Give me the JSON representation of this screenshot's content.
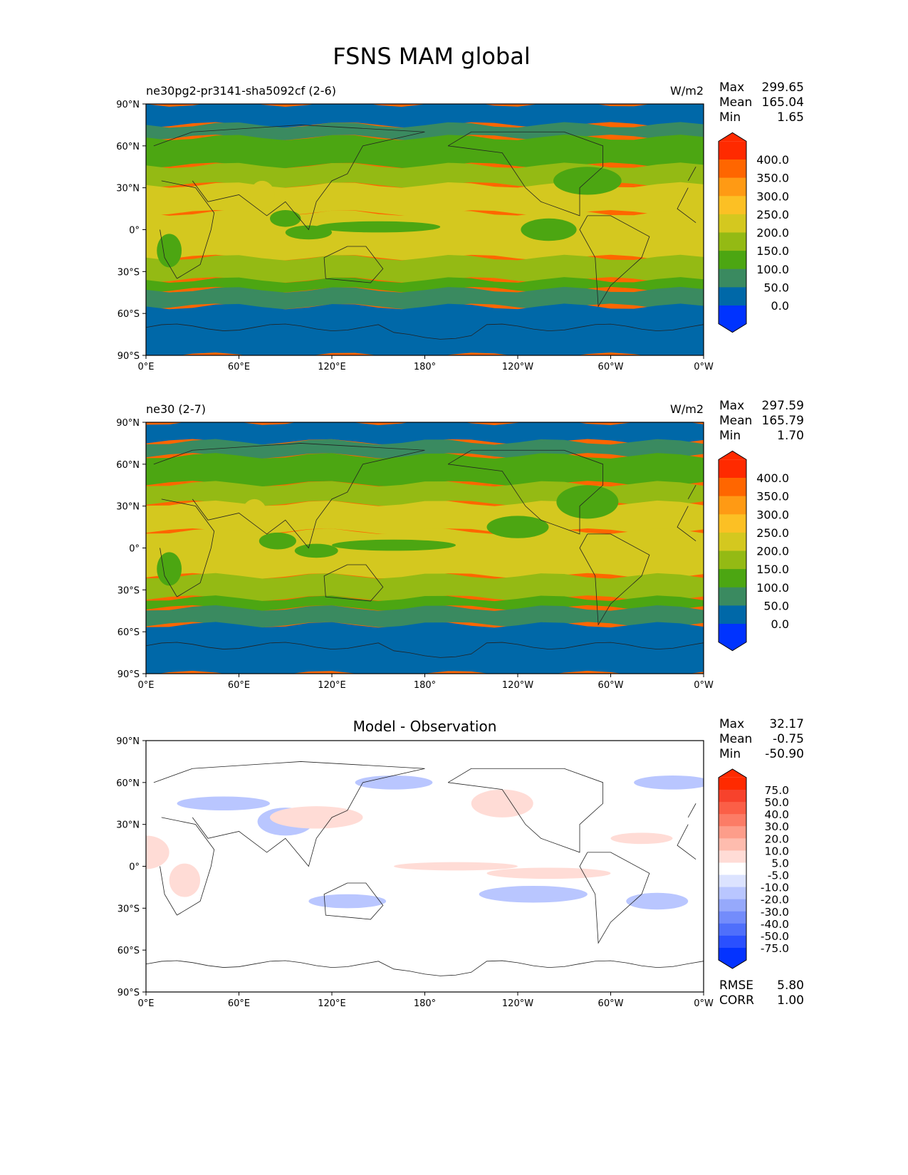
{
  "chart_data": {
    "type": "heatmap",
    "title": "FSNS MAM global",
    "x_ticks": [
      "0°E",
      "60°E",
      "120°E",
      "180°",
      "120°W",
      "60°W",
      "0°W"
    ],
    "y_ticks": [
      "90°N",
      "60°N",
      "30°N",
      "0°",
      "30°S",
      "60°S",
      "90°S"
    ],
    "panels": [
      {
        "left_title": "ne30pg2-pr3141-sha5092cf (2-6)",
        "right_title": "W/m2",
        "center_title": "",
        "stats": [
          {
            "label": "Max",
            "value": "299.65"
          },
          {
            "label": "Mean",
            "value": "165.04"
          },
          {
            "label": "Min",
            "value": "1.65"
          }
        ],
        "levels": [
          "400.0",
          "350.0",
          "300.0",
          "250.0",
          "200.0",
          "150.0",
          "100.0",
          "50.0",
          "0.0"
        ],
        "colors": [
          "#ff2a00",
          "#ff6600",
          "#ff9a14",
          "#fcc024",
          "#d4c81f",
          "#94ba14",
          "#4ca612",
          "#3a8a60",
          "#0068a8",
          "#0033ff"
        ],
        "zonal_bands": [
          [
            90,
            75,
            1
          ],
          [
            75,
            66,
            2
          ],
          [
            66,
            46,
            3
          ],
          [
            46,
            32,
            4
          ],
          [
            32,
            12,
            5
          ],
          [
            12,
            -20,
            5
          ],
          [
            -20,
            -36,
            4
          ],
          [
            -36,
            -43,
            3
          ],
          [
            -43,
            -55,
            2
          ],
          [
            -55,
            -90,
            1
          ]
        ],
        "patches": [
          [
            35,
            -75,
            22,
            10,
            6
          ],
          [
            0,
            -100,
            18,
            8,
            6
          ],
          [
            8,
            90,
            10,
            6,
            6
          ],
          [
            -2,
            105,
            15,
            5,
            6
          ],
          [
            25,
            75,
            8,
            10,
            4
          ],
          [
            2,
            150,
            40,
            4,
            6
          ],
          [
            -15,
            15,
            8,
            12,
            6
          ]
        ]
      },
      {
        "left_title": "ne30 (2-7)",
        "right_title": "W/m2",
        "center_title": "",
        "stats": [
          {
            "label": "Max",
            "value": "297.59"
          },
          {
            "label": "Mean",
            "value": "165.79"
          },
          {
            "label": "Min",
            "value": "1.70"
          }
        ],
        "levels": [
          "400.0",
          "350.0",
          "300.0",
          "250.0",
          "200.0",
          "150.0",
          "100.0",
          "50.0",
          "0.0"
        ],
        "colors": [
          "#ff2a00",
          "#ff6600",
          "#ff9a14",
          "#fcc024",
          "#d4c81f",
          "#94ba14",
          "#4ca612",
          "#3a8a60",
          "#0068a8",
          "#0033ff"
        ],
        "zonal_bands": [
          [
            90,
            76,
            1
          ],
          [
            76,
            66,
            2
          ],
          [
            66,
            46,
            3
          ],
          [
            46,
            32,
            4
          ],
          [
            32,
            12,
            5
          ],
          [
            12,
            -20,
            5
          ],
          [
            -20,
            -36,
            4
          ],
          [
            -36,
            -43,
            3
          ],
          [
            -43,
            -55,
            2
          ],
          [
            -55,
            -90,
            1
          ]
        ],
        "patches": [
          [
            33,
            -75,
            20,
            12,
            6
          ],
          [
            15,
            -120,
            20,
            8,
            6
          ],
          [
            5,
            85,
            12,
            6,
            6
          ],
          [
            -2,
            110,
            14,
            5,
            6
          ],
          [
            25,
            70,
            8,
            10,
            4
          ],
          [
            2,
            160,
            40,
            4,
            6
          ],
          [
            -15,
            15,
            8,
            12,
            6
          ]
        ]
      },
      {
        "left_title": "",
        "right_title": "",
        "center_title": "Model - Observation",
        "stats": [
          {
            "label": "Max",
            "value": "32.17"
          },
          {
            "label": "Mean",
            "value": "-0.75"
          },
          {
            "label": "Min",
            "value": "-50.90"
          }
        ],
        "levels": [
          "75.0",
          "50.0",
          "40.0",
          "30.0",
          "20.0",
          "10.0",
          "5.0",
          "-5.0",
          "-10.0",
          "-20.0",
          "-30.0",
          "-40.0",
          "-50.0",
          "-75.0"
        ],
        "colors": [
          "#ff2a00",
          "#f7422c",
          "#fb5f47",
          "#fc7c66",
          "#fd9d8a",
          "#febcae",
          "#ffdcd6",
          "#ffffff",
          "#dce3ff",
          "#b9c6ff",
          "#96a9fb",
          "#738cfb",
          "#4f6ffb",
          "#2a50ff",
          "#0433ff"
        ],
        "zonal_bands": [],
        "patches": [
          [
            32,
            90,
            10,
            6,
            11
          ],
          [
            32,
            90,
            18,
            10,
            9
          ],
          [
            35,
            110,
            30,
            8,
            6
          ],
          [
            45,
            -130,
            20,
            10,
            6
          ],
          [
            -20,
            -110,
            35,
            6,
            9
          ],
          [
            -5,
            -100,
            40,
            4,
            6
          ],
          [
            10,
            0,
            15,
            12,
            6
          ],
          [
            -10,
            25,
            10,
            12,
            6
          ],
          [
            45,
            50,
            30,
            5,
            9
          ],
          [
            60,
            -20,
            25,
            5,
            9
          ],
          [
            -25,
            -30,
            20,
            6,
            9
          ],
          [
            20,
            -40,
            20,
            4,
            6
          ],
          [
            0,
            -160,
            40,
            3,
            6
          ],
          [
            -25,
            130,
            25,
            5,
            9
          ],
          [
            60,
            160,
            25,
            5,
            9
          ]
        ]
      }
    ],
    "bottom_stats": [
      {
        "label": "RMSE",
        "value": "5.80"
      },
      {
        "label": "CORR",
        "value": "1.00"
      }
    ]
  }
}
